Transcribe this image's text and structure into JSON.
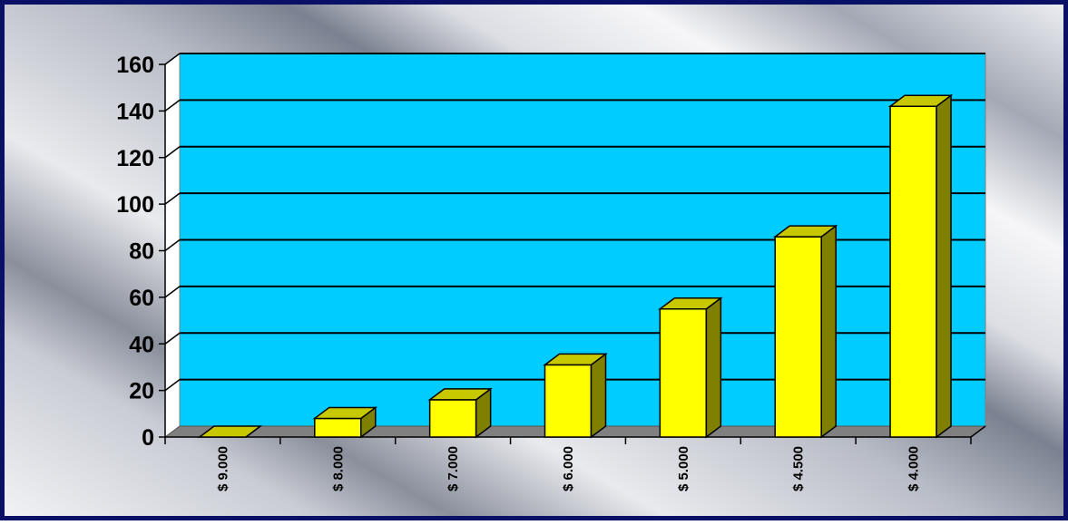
{
  "chart_data": {
    "type": "bar",
    "categories": [
      "$ 9.000",
      "$ 8.000",
      "$ 7.000",
      "$ 6.000",
      "$ 5.000",
      "$ 4.500",
      "$ 4.000"
    ],
    "values": [
      0,
      8,
      16,
      31,
      55,
      86,
      142
    ],
    "title": "",
    "xlabel": "",
    "ylabel": "",
    "ylim": [
      0,
      160
    ],
    "yticks": [
      0,
      20,
      40,
      60,
      80,
      100,
      120,
      140,
      160
    ],
    "grid": true,
    "legend": "none",
    "colors": {
      "plot_background": "#00ccff",
      "bar_front": "#ffff00",
      "bar_side": "#808000",
      "bar_top": "#c8c800",
      "floor": "#808080",
      "gridline": "#000000",
      "frame_border": "#0a1066"
    }
  }
}
